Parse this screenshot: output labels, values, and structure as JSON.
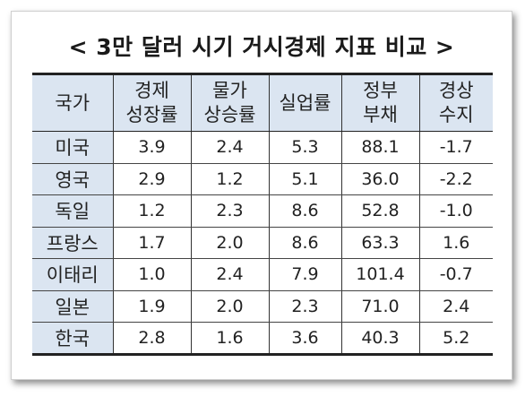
{
  "title": "< 3만 달러 시기 거시경제 지표 비교 >",
  "table": {
    "headers": [
      [
        "국가"
      ],
      [
        "경제",
        "성장률"
      ],
      [
        "물가",
        "상승률"
      ],
      [
        "실업률"
      ],
      [
        "정부",
        "부채"
      ],
      [
        "경상",
        "수지"
      ]
    ],
    "rows": [
      [
        "미국",
        "3.9",
        "2.4",
        "5.3",
        "88.1",
        "-1.7"
      ],
      [
        "영국",
        "2.9",
        "1.2",
        "5.1",
        "36.0",
        "-2.2"
      ],
      [
        "독일",
        "1.2",
        "2.3",
        "8.6",
        "52.8",
        "-1.0"
      ],
      [
        "프랑스",
        "1.7",
        "2.0",
        "8.6",
        "63.3",
        "1.6"
      ],
      [
        "이태리",
        "1.0",
        "2.4",
        "7.9",
        "101.4",
        "-0.7"
      ],
      [
        "일본",
        "1.9",
        "2.0",
        "2.3",
        "71.0",
        "2.4"
      ],
      [
        "한국",
        "2.8",
        "1.6",
        "3.6",
        "40.3",
        "5.2"
      ]
    ]
  },
  "colors": {
    "header_bg": "#dbe5f1",
    "rule": "#222222"
  }
}
